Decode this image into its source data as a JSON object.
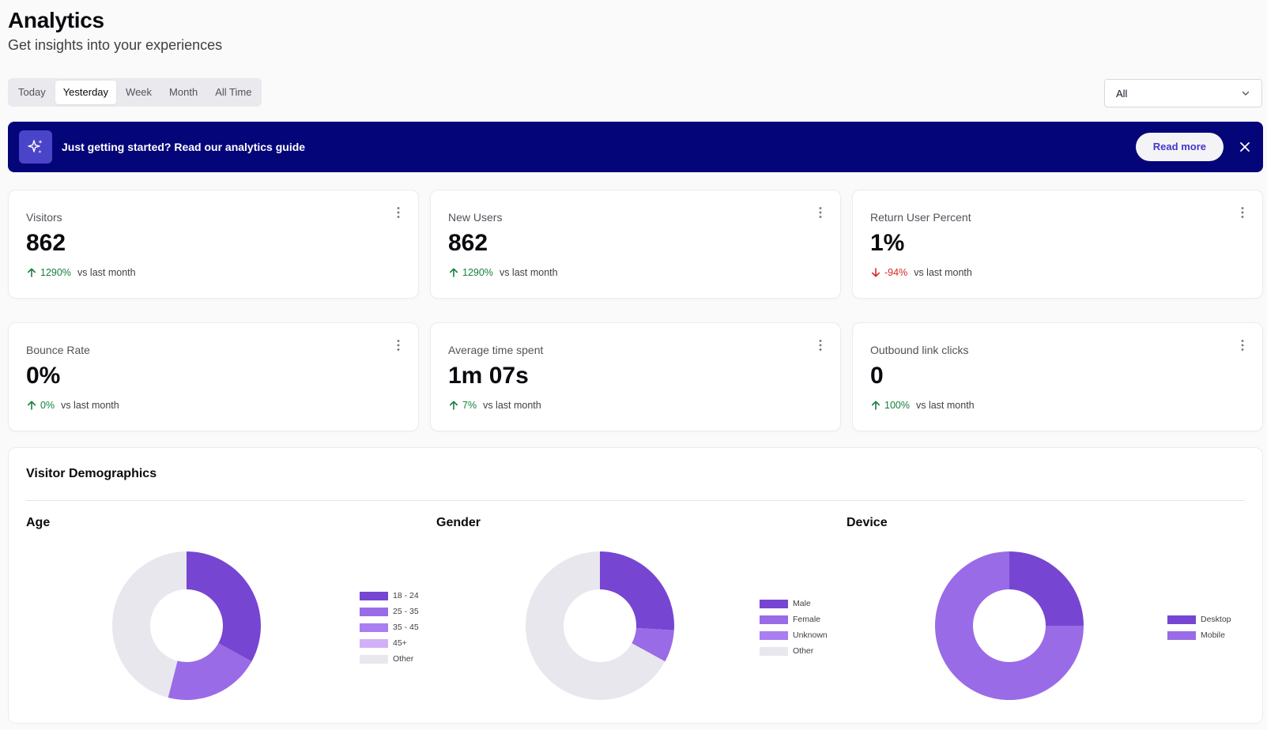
{
  "header": {
    "title": "Analytics",
    "subtitle": "Get insights into your experiences"
  },
  "range_tabs": [
    "Today",
    "Yesterday",
    "Week",
    "Month",
    "All Time"
  ],
  "range_active": "Yesterday",
  "filter": {
    "selected": "All"
  },
  "banner": {
    "text": "Just getting started? Read our analytics guide",
    "button": "Read more"
  },
  "stats": [
    {
      "label": "Visitors",
      "value": "862",
      "delta": "1290%",
      "direction": "up",
      "vs": "vs last month"
    },
    {
      "label": "New Users",
      "value": "862",
      "delta": "1290%",
      "direction": "up",
      "vs": "vs last month"
    },
    {
      "label": "Return User Percent",
      "value": "1%",
      "delta": "-94%",
      "direction": "down",
      "vs": "vs last month"
    },
    {
      "label": "Bounce Rate",
      "value": "0%",
      "delta": "0%",
      "direction": "up",
      "vs": "vs last month"
    },
    {
      "label": "Average time spent",
      "value": "1m 07s",
      "delta": "7%",
      "direction": "up",
      "vs": "vs last month"
    },
    {
      "label": "Outbound link clicks",
      "value": "0",
      "delta": "100%",
      "direction": "up",
      "vs": "vs last month"
    }
  ],
  "demographics": {
    "title": "Visitor Demographics",
    "sections": [
      {
        "title": "Age"
      },
      {
        "title": "Gender"
      },
      {
        "title": "Device"
      }
    ]
  },
  "colors": {
    "banner_bg": "#05057a",
    "up": "#15803d",
    "down": "#dc2626",
    "slice_1": "#7646d2",
    "slice_2": "#9a6be6",
    "slice_3": "#a97ef0",
    "slice_4": "#d2b0f8",
    "slice_other": "#e7e7ed"
  },
  "chart_data": [
    {
      "type": "pie",
      "title": "Age",
      "labels": [
        "18 - 24",
        "25 - 35",
        "35 - 45",
        "45+",
        "Other"
      ],
      "values": [
        33,
        21,
        0,
        0,
        46
      ],
      "colors": [
        "#7646d2",
        "#9a6be6",
        "#a97ef0",
        "#d2b0f8",
        "#e7e7ed"
      ]
    },
    {
      "type": "pie",
      "title": "Gender",
      "labels": [
        "Male",
        "Female",
        "Unknown",
        "Other"
      ],
      "values": [
        26,
        7,
        0,
        67
      ],
      "colors": [
        "#7646d2",
        "#9a6be6",
        "#a97ef0",
        "#e7e7ed"
      ]
    },
    {
      "type": "pie",
      "title": "Device",
      "labels": [
        "Desktop",
        "Mobile"
      ],
      "values": [
        25,
        75
      ],
      "colors": [
        "#7646d2",
        "#9a6be6"
      ]
    }
  ]
}
